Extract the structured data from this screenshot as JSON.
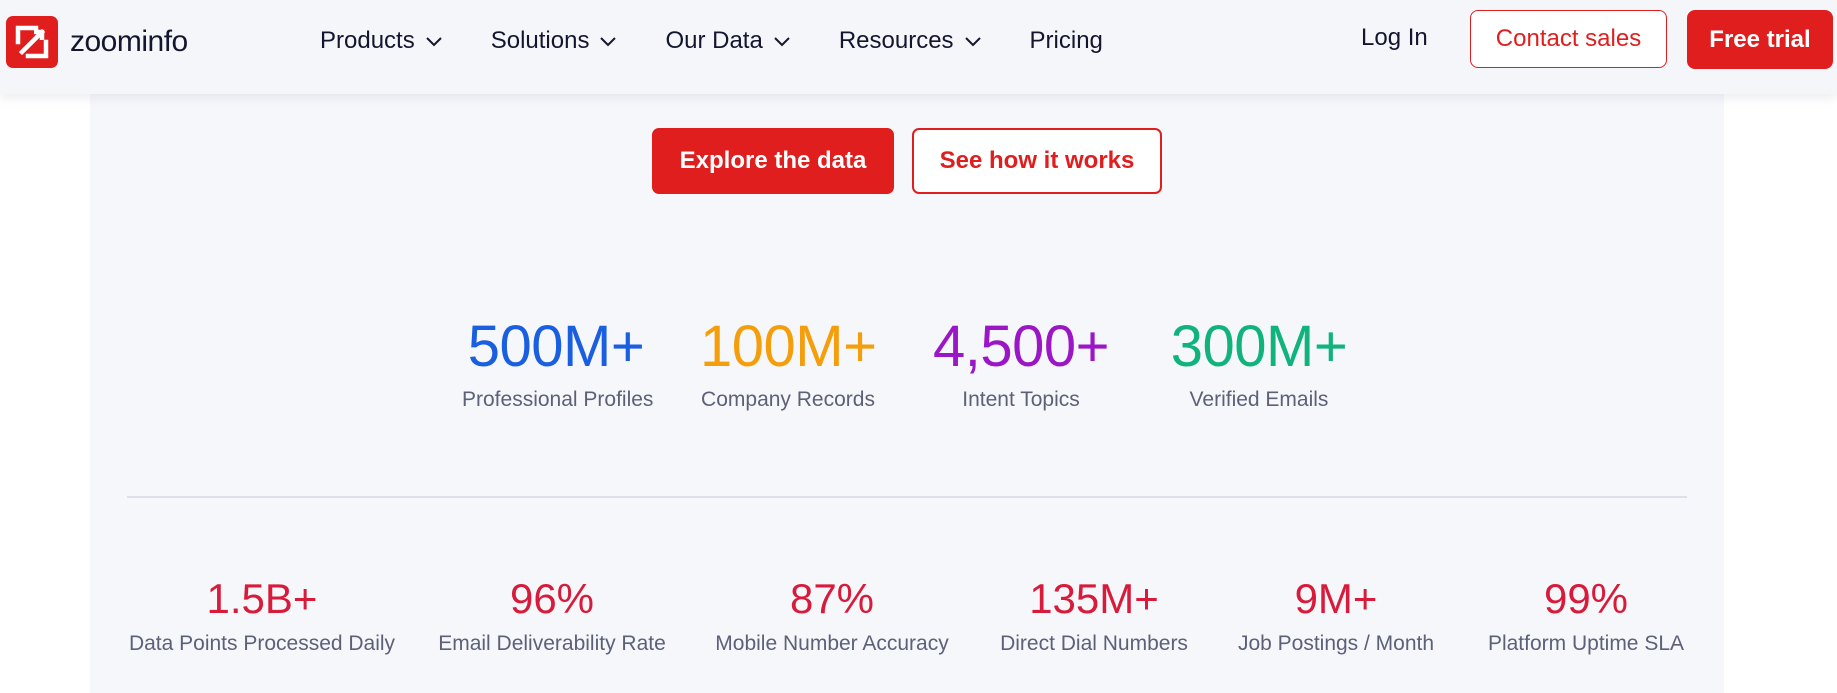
{
  "brand": {
    "name": "zoominfo",
    "color": "#e01e1e"
  },
  "nav": {
    "items": [
      {
        "label": "Products",
        "has_dropdown": true
      },
      {
        "label": "Solutions",
        "has_dropdown": true
      },
      {
        "label": "Our Data",
        "has_dropdown": true
      },
      {
        "label": "Resources",
        "has_dropdown": true
      },
      {
        "label": "Pricing",
        "has_dropdown": false
      }
    ],
    "login": "Log In",
    "contact_sales": "Contact sales",
    "free_trial": "Free trial"
  },
  "cta": {
    "primary": "Explore the data",
    "secondary": "See how it works"
  },
  "stats": [
    {
      "value": "500M+",
      "label": "Professional Profiles",
      "color": "#1a5fe0"
    },
    {
      "value": "100M+",
      "label": "Company Records",
      "color": "#f59e0b"
    },
    {
      "value": "4,500+",
      "label": "Intent Topics",
      "color": "#9b16c4"
    },
    {
      "value": "300M+",
      "label": "Verified Emails",
      "color": "#10b37c"
    }
  ],
  "metrics": [
    {
      "value": "1.5B+",
      "label": "Data Points Processed Daily"
    },
    {
      "value": "96%",
      "label": "Email Deliverability Rate"
    },
    {
      "value": "87%",
      "label": "Mobile Number Accuracy"
    },
    {
      "value": "135M+",
      "label": "Direct Dial Numbers"
    },
    {
      "value": "9M+",
      "label": "Job Postings / Month"
    },
    {
      "value": "99%",
      "label": "Platform Uptime SLA"
    }
  ],
  "metric_color": "#d81b3a"
}
